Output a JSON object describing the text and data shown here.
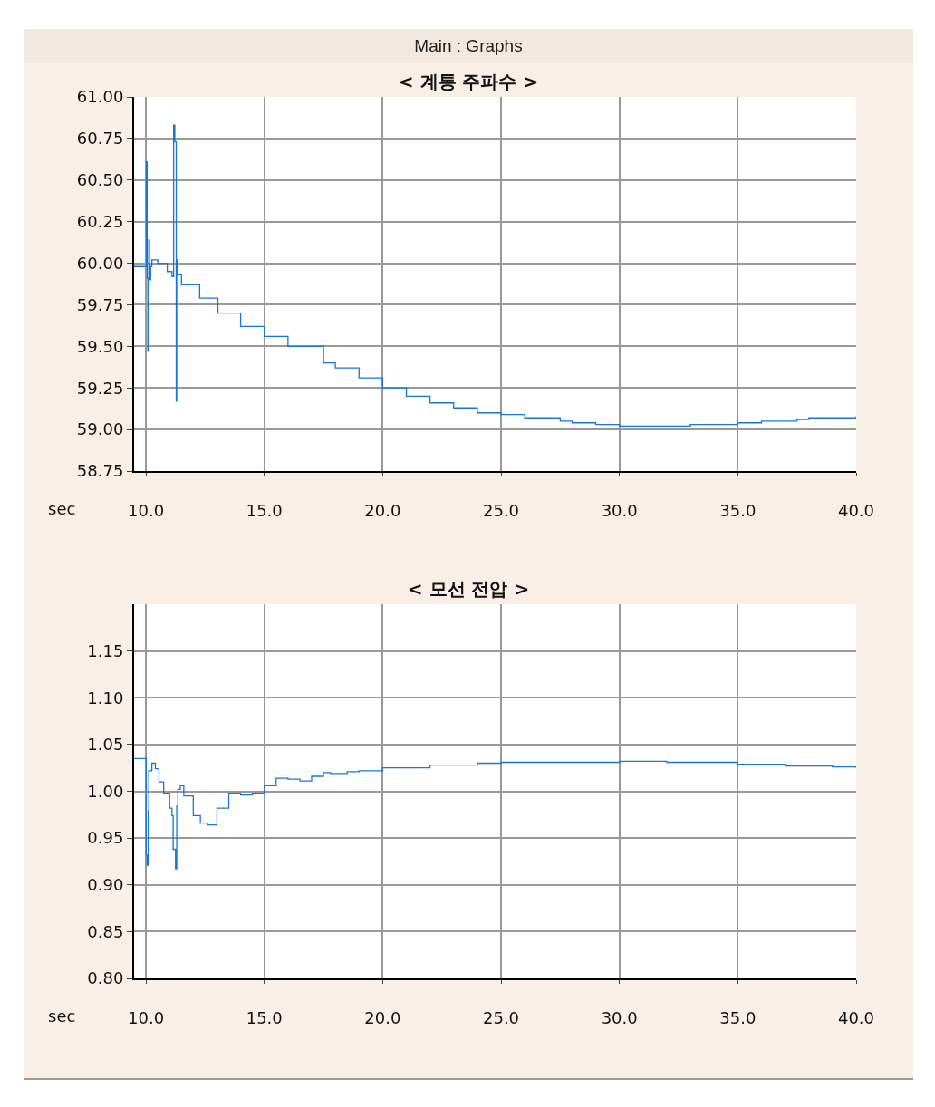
{
  "chart_data": [
    {
      "type": "step",
      "title": "< 계통 주파수 >",
      "xlabel": "sec",
      "annotations": [
        "Main : Graphs"
      ],
      "grid": true,
      "xlim": [
        9.5,
        40
      ],
      "ylim": [
        58.75,
        61
      ],
      "xticks": [
        {
          "value": 10,
          "label": "10.0"
        },
        {
          "value": 15,
          "label": "15.0"
        },
        {
          "value": 20,
          "label": "20.0"
        },
        {
          "value": 25,
          "label": "25.0"
        },
        {
          "value": 30,
          "label": "30.0"
        },
        {
          "value": 35,
          "label": "35.0"
        },
        {
          "value": 40,
          "label": "40.0"
        }
      ],
      "yticks": [
        {
          "value": 58.75,
          "label": "58.75"
        },
        {
          "value": 59,
          "label": "59.00"
        },
        {
          "value": 59.25,
          "label": "59.25"
        },
        {
          "value": 59.5,
          "label": "59.50"
        },
        {
          "value": 59.75,
          "label": "59.75"
        },
        {
          "value": 60,
          "label": "60.00"
        },
        {
          "value": 60.25,
          "label": "60.25"
        },
        {
          "value": 60.5,
          "label": "60.50"
        },
        {
          "value": 60.75,
          "label": "60.75"
        },
        {
          "value": 61,
          "label": "61.00"
        }
      ],
      "x": [
        9.5,
        10.0,
        10.02,
        10.05,
        10.08,
        10.12,
        10.15,
        10.2,
        10.25,
        10.5,
        10.9,
        11.1,
        11.17,
        11.22,
        11.28,
        11.3,
        11.35,
        11.5,
        12.27,
        13.04,
        14,
        15,
        16,
        17.5,
        18,
        19,
        20,
        21,
        22,
        23,
        24,
        25,
        26,
        27.5,
        28,
        29,
        30,
        32.5,
        33,
        35,
        36,
        37.5,
        38,
        39,
        40
      ],
      "series": [
        {
          "color": "#1a75d8",
          "values": [
            59.98,
            59.98,
            60.61,
            59.91,
            59.47,
            60.14,
            59.9,
            59.98,
            60.02,
            60.0,
            59.95,
            59.92,
            60.83,
            60.73,
            59.17,
            60.02,
            59.93,
            59.87,
            59.79,
            59.7,
            59.62,
            59.56,
            59.5,
            59.4,
            59.37,
            59.31,
            59.25,
            59.2,
            59.16,
            59.13,
            59.1,
            59.09,
            59.07,
            59.05,
            59.04,
            59.03,
            59.02,
            59.02,
            59.03,
            59.04,
            59.05,
            59.06,
            59.07,
            59.07,
            59.08
          ]
        }
      ]
    },
    {
      "type": "step",
      "title": "< 모선 전압 >",
      "xlabel": "sec",
      "grid": true,
      "xlim": [
        9.5,
        40
      ],
      "ylim": [
        0.8,
        1.2
      ],
      "xticks": [
        {
          "value": 10,
          "label": "10.0"
        },
        {
          "value": 15,
          "label": "15.0"
        },
        {
          "value": 20,
          "label": "20.0"
        },
        {
          "value": 25,
          "label": "25.0"
        },
        {
          "value": 30,
          "label": "30.0"
        },
        {
          "value": 35,
          "label": "35.0"
        },
        {
          "value": 40,
          "label": "40.0"
        }
      ],
      "yticks": [
        {
          "value": 0.8,
          "label": "0.80"
        },
        {
          "value": 0.85,
          "label": "0.85"
        },
        {
          "value": 0.9,
          "label": "0.90"
        },
        {
          "value": 0.95,
          "label": "0.95"
        },
        {
          "value": 1.0,
          "label": "1.00"
        },
        {
          "value": 1.05,
          "label": "1.05"
        },
        {
          "value": 1.1,
          "label": "1.10"
        },
        {
          "value": 1.15,
          "label": "1.15"
        }
      ],
      "x": [
        9.5,
        10.0,
        10.01,
        10.05,
        10.1,
        10.12,
        10.25,
        10.4,
        10.55,
        10.75,
        11.0,
        11.1,
        11.15,
        11.25,
        11.3,
        11.35,
        11.45,
        11.6,
        12.0,
        12.3,
        12.6,
        13.0,
        13.5,
        14.0,
        14.5,
        15.0,
        15.5,
        16.0,
        16.5,
        17.0,
        17.5,
        17.8,
        18.5,
        19,
        20,
        22,
        24,
        25,
        27,
        30,
        32,
        35,
        37,
        39,
        40
      ],
      "series": [
        {
          "color": "#1a75d8",
          "values": [
            1.035,
            1.035,
            0.932,
            0.921,
            0.979,
            1.022,
            1.03,
            1.024,
            1.01,
            0.998,
            0.982,
            0.974,
            0.938,
            0.917,
            0.984,
            1.002,
            1.006,
            0.995,
            0.974,
            0.966,
            0.964,
            0.982,
            0.998,
            0.996,
            0.998,
            1.006,
            1.014,
            1.013,
            1.011,
            1.016,
            1.02,
            1.019,
            1.021,
            1.022,
            1.025,
            1.028,
            1.03,
            1.031,
            1.031,
            1.032,
            1.031,
            1.029,
            1.027,
            1.026,
            1.025
          ]
        }
      ]
    }
  ]
}
